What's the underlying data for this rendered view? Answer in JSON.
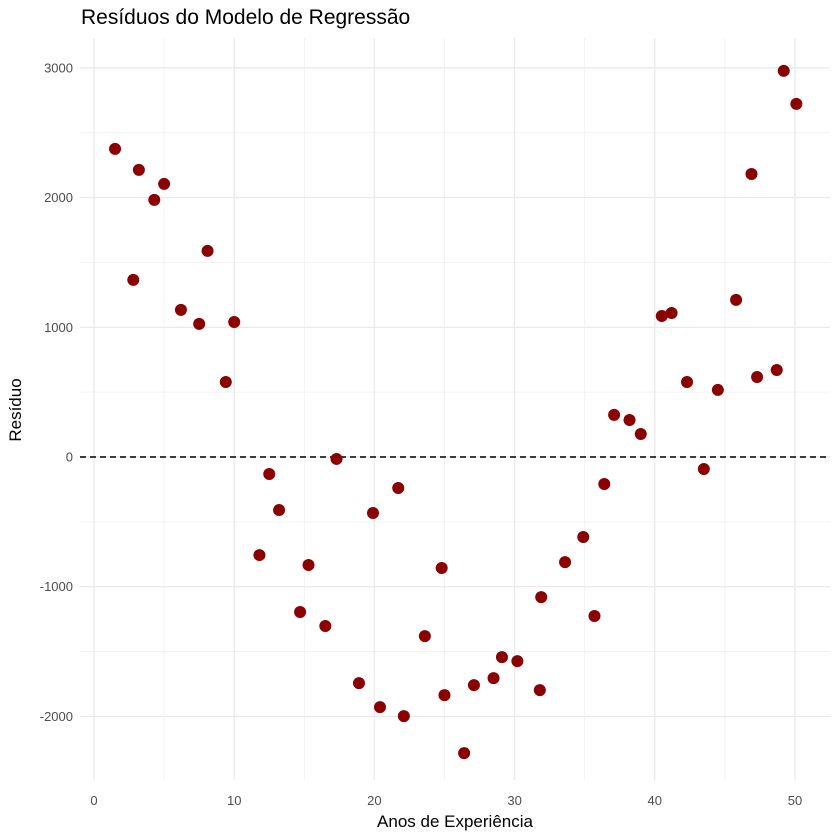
{
  "chart_data": {
    "type": "scatter",
    "title": "Resíduos do Modelo de Regressão",
    "xlabel": "Anos de Experiência",
    "ylabel": "Resíduo",
    "xlim": [
      -1.0,
      52.5
    ],
    "ylim": [
      -2490,
      3230
    ],
    "x_ticks": [
      0,
      10,
      20,
      30,
      40,
      50
    ],
    "y_ticks": [
      -2000,
      -1000,
      0,
      1000,
      2000,
      3000
    ],
    "grid": true,
    "reference_line": {
      "y": 0,
      "style": "dashed",
      "color": "#000000"
    },
    "point_color": "#8B0000",
    "points": [
      [
        1.5,
        2375
      ],
      [
        2.8,
        1365
      ],
      [
        3.2,
        2213
      ],
      [
        4.3,
        1982
      ],
      [
        5.0,
        2105
      ],
      [
        6.2,
        1134
      ],
      [
        7.5,
        1026
      ],
      [
        8.1,
        1589
      ],
      [
        9.4,
        578
      ],
      [
        10.0,
        1041
      ],
      [
        11.8,
        -756
      ],
      [
        12.5,
        -131
      ],
      [
        13.2,
        -409
      ],
      [
        14.7,
        -1195
      ],
      [
        15.3,
        -833
      ],
      [
        16.5,
        -1303
      ],
      [
        17.3,
        -15
      ],
      [
        18.9,
        -1743
      ],
      [
        19.9,
        -432
      ],
      [
        20.4,
        -1928
      ],
      [
        21.7,
        -239
      ],
      [
        22.1,
        -1998
      ],
      [
        23.6,
        -1381
      ],
      [
        24.8,
        -856
      ],
      [
        25.0,
        -1836
      ],
      [
        26.4,
        -2283
      ],
      [
        27.1,
        -1759
      ],
      [
        28.5,
        -1705
      ],
      [
        29.1,
        -1543
      ],
      [
        30.2,
        -1574
      ],
      [
        31.8,
        -1797
      ],
      [
        31.9,
        -1080
      ],
      [
        33.6,
        -810
      ],
      [
        34.9,
        -617
      ],
      [
        35.7,
        -1226
      ],
      [
        36.4,
        -208
      ],
      [
        37.1,
        325
      ],
      [
        38.2,
        285
      ],
      [
        39.0,
        177
      ],
      [
        40.5,
        1087
      ],
      [
        41.2,
        1110
      ],
      [
        42.3,
        578
      ],
      [
        43.5,
        -93
      ],
      [
        44.5,
        517
      ],
      [
        45.8,
        1211
      ],
      [
        46.9,
        2182
      ],
      [
        47.3,
        617
      ],
      [
        48.7,
        671
      ],
      [
        49.2,
        2977
      ],
      [
        50.1,
        2722
      ]
    ]
  }
}
